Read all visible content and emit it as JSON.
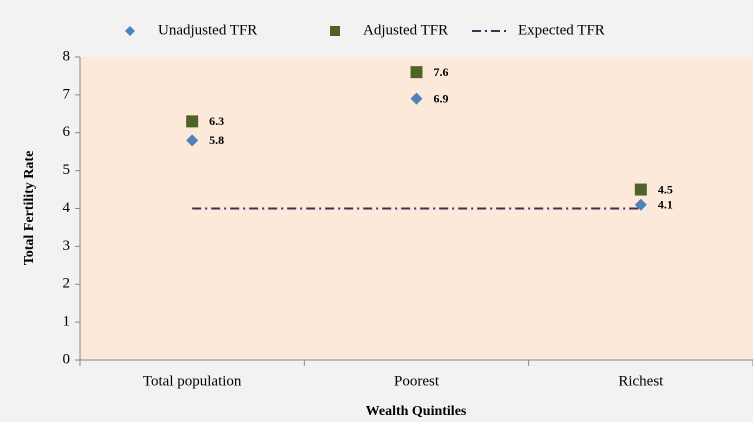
{
  "chart_data": {
    "type": "scatter",
    "xlabel": "Wealth Quintiles",
    "ylabel": "Total Fertility Rate",
    "categories": [
      "Total population",
      "Poorest",
      "Richest"
    ],
    "series": [
      {
        "name": "Unadjusted TFR",
        "color": "#4f81bd",
        "marker": "diamond",
        "values": [
          5.8,
          6.9,
          4.1
        ],
        "labels": true
      },
      {
        "name": "Adjusted TFR",
        "color": "#4f6228",
        "marker": "square",
        "values": [
          6.3,
          7.6,
          4.5
        ],
        "labels": true
      },
      {
        "name": "Expected TFR",
        "color": "#403152",
        "marker": "dashdot",
        "values": [
          4,
          4,
          4
        ],
        "labels": false
      }
    ],
    "ylim": [
      0,
      8
    ],
    "yticks": [
      0,
      1,
      2,
      3,
      4,
      5,
      6,
      7,
      8
    ],
    "legend": "top"
  }
}
